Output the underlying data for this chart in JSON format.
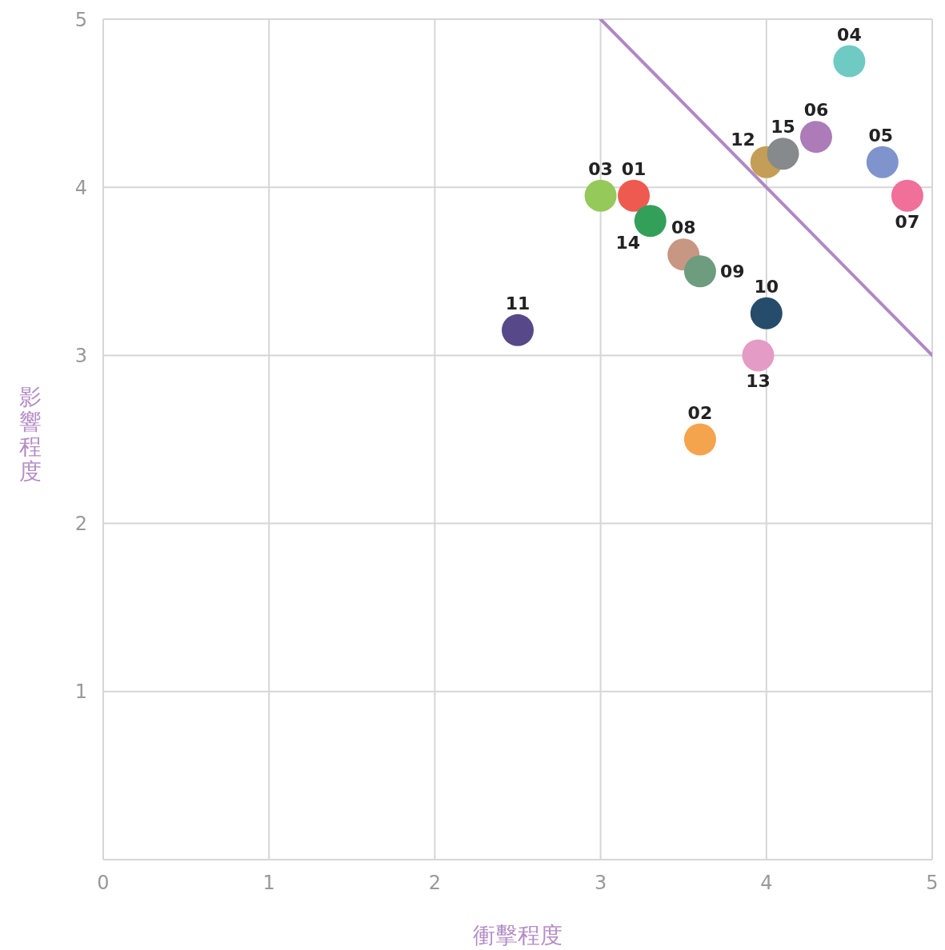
{
  "chart_data": {
    "type": "scatter",
    "xlabel": "衝擊程度",
    "ylabel": "影響程度",
    "xlim": [
      0,
      5
    ],
    "ylim": [
      0,
      5
    ],
    "xticks": [
      0,
      1,
      2,
      3,
      4,
      5
    ],
    "yticks": [
      {
        "value": 0,
        "label": null
      },
      1,
      2,
      3,
      4,
      5
    ],
    "grid": true,
    "marker": "circle",
    "series": [
      {
        "name": "01",
        "color": "#ef5a50",
        "x": [
          3.2
        ],
        "values": [
          3.95
        ]
      },
      {
        "name": "02",
        "color": "#f5a44e",
        "x": [
          3.6
        ],
        "values": [
          2.5
        ]
      },
      {
        "name": "03",
        "color": "#95c95a",
        "x": [
          3.0
        ],
        "values": [
          3.95
        ]
      },
      {
        "name": "04",
        "color": "#6ecac3",
        "x": [
          4.5
        ],
        "values": [
          4.75
        ]
      },
      {
        "name": "05",
        "color": "#7f94cc",
        "x": [
          4.7
        ],
        "values": [
          4.15
        ]
      },
      {
        "name": "06",
        "color": "#ad7bb8",
        "x": [
          4.3
        ],
        "values": [
          4.3
        ]
      },
      {
        "name": "07",
        "color": "#f0709a",
        "x": [
          4.85
        ],
        "values": [
          3.95
        ]
      },
      {
        "name": "08",
        "color": "#c79784",
        "x": [
          3.5
        ],
        "values": [
          3.6
        ]
      },
      {
        "name": "09",
        "color": "#6e9c7e",
        "x": [
          3.6
        ],
        "values": [
          3.5
        ]
      },
      {
        "name": "10",
        "color": "#264c6b",
        "x": [
          4.0
        ],
        "values": [
          3.25
        ]
      },
      {
        "name": "11",
        "color": "#574889",
        "x": [
          2.5
        ],
        "values": [
          3.15
        ]
      },
      {
        "name": "12",
        "color": "#c49e56",
        "x": [
          4.0
        ],
        "values": [
          4.15
        ]
      },
      {
        "name": "13",
        "color": "#e49bc6",
        "x": [
          3.95
        ],
        "values": [
          3.0
        ]
      },
      {
        "name": "14",
        "color": "#33a05a",
        "x": [
          3.3
        ],
        "values": [
          3.8
        ]
      },
      {
        "name": "15",
        "color": "#878a8d",
        "x": [
          4.1
        ],
        "values": [
          4.2
        ]
      },
      {
        "type": "line",
        "color": "#b088c4",
        "marker": "none",
        "x": [
          3,
          5
        ],
        "values": [
          5,
          3
        ]
      }
    ]
  }
}
